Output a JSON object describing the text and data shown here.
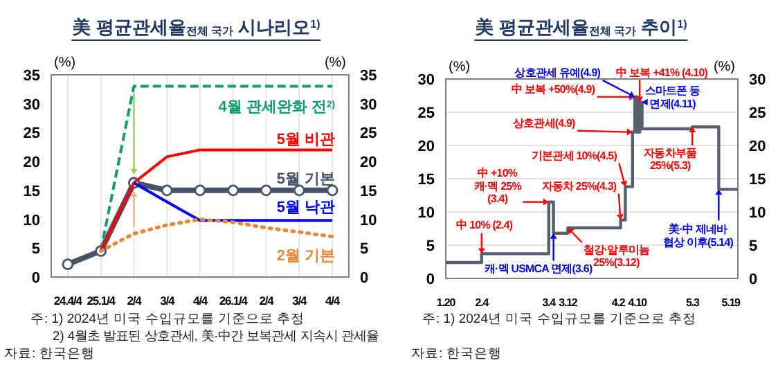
{
  "chart_data": [
    {
      "type": "line",
      "title": "美 평균관세율$_{전체 국가}$ 시나리오$^{1)}$",
      "ylabel": "(%)",
      "y2label": "(%)",
      "categories": [
        "24.4/4",
        "25.1/4",
        "2/4",
        "3/4",
        "4/4",
        "26.1/4",
        "2/4",
        "3/4",
        "4/4"
      ],
      "series": [
        {
          "name": "4월 관세완화 전$^{2)}$",
          "color": "#139b72",
          "line_style": "dashed",
          "marker": "none",
          "values": [
            null,
            4.5,
            33,
            33,
            33,
            33,
            33,
            33,
            33
          ]
        },
        {
          "name": "5월 비관",
          "color": "#ff0000",
          "line_style": "solid",
          "marker": "none",
          "values": [
            null,
            4.5,
            16.3,
            20.8,
            22,
            22,
            22,
            22,
            22
          ]
        },
        {
          "name": "5월 기본",
          "color": "#44546a",
          "line_style": "solid",
          "marker": "circle",
          "values": [
            2.2,
            4.5,
            16.3,
            15,
            15,
            15,
            15,
            15,
            15
          ]
        },
        {
          "name": "5월 낙관",
          "color": "#0000ff",
          "line_style": "solid",
          "marker": "none",
          "values": [
            null,
            null,
            16.3,
            13,
            9.8,
            9.8,
            9.8,
            9.8,
            9.8
          ]
        },
        {
          "name": "2월 기본",
          "color": "#e8883a",
          "line_style": "dotted",
          "marker": "none",
          "values": [
            null,
            4.5,
            7.5,
            9,
            10,
            9.5,
            8.5,
            7.8,
            7
          ]
        }
      ],
      "ylim": [
        0,
        35
      ],
      "yticks": [
        0,
        5,
        10,
        15,
        20,
        25,
        30,
        35
      ],
      "y2lim": [
        0,
        35
      ],
      "y2ticks": [
        0,
        5,
        10,
        15,
        20,
        25,
        30,
        35
      ],
      "grid": "x",
      "annotations": [
        "주: 1) 2024년 미국 수입규모를 기준으로 추정",
        "2) 4월초 발표된 상호관세, 美·中간 보복관세 지속시 관세율",
        "자료: 한국은행"
      ]
    },
    {
      "type": "step",
      "title": "美 평균관세율$_{전체 국가}$ 추이$^{1)}$",
      "ylabel": "(%)",
      "y2label": "(%)",
      "x": [
        "--01-20",
        "--02-04",
        "--03-04",
        "--03-06",
        "--03-12",
        "--04-03",
        "--04-05",
        "--04-08",
        "--04-09",
        "--04-10",
        "--04-11",
        "--04-12",
        "--05-03",
        "--05-14",
        "--05-22"
      ],
      "series": [
        {
          "color": "#56606f",
          "values": [
            2.4,
            3.7,
            11.5,
            6.8,
            7.6,
            8.8,
            13.8,
            22,
            27.3,
            22,
            26.5,
            22.5,
            22.8,
            13.4,
            13.4
          ]
        }
      ],
      "xlim": [
        "--01-20",
        "--05-22"
      ],
      "xticks": [
        {
          "value": "--01-20",
          "label": "1.20"
        },
        {
          "value": "--02-04",
          "label": "2.4"
        },
        {
          "value": "--03-04",
          "label": "3.4"
        },
        {
          "value": "--03-12",
          "label": "3.12"
        },
        {
          "value": "--04-02",
          "label": "4.2"
        },
        {
          "value": "--04-10",
          "label": "4.10"
        },
        {
          "value": "--05-03",
          "label": "5.3"
        },
        {
          "value": "--05-19",
          "label": "5.19"
        }
      ],
      "ylim": [
        0,
        30
      ],
      "yticks": [
        0,
        5,
        10,
        15,
        20,
        25,
        30
      ],
      "y2lim": [
        0,
        30
      ],
      "y2ticks": [
        0,
        5,
        10,
        15,
        20,
        25,
        30
      ],
      "grid": "y",
      "annotations": [
        {
          "text": "中 10% (2.4)",
          "x": "--02-04",
          "y": 3.7
        },
        {
          "text": "中 +10%\n캐·멕 25%\n(3.4)",
          "x": "--03-04",
          "y": 11.5
        },
        {
          "text": "캐·멕 USMCA 면제(3.6)",
          "x": "--03-06",
          "y": 6.8
        },
        {
          "text": "철강·알루미늄\n25%(3.12)",
          "x": "--03-12",
          "y": 7.6
        },
        {
          "text": "자동차 25%(4.3)",
          "x": "--04-03",
          "y": 8.8
        },
        {
          "text": "기본관세 10%(4.5)",
          "x": "--04-05",
          "y": 13.8
        },
        {
          "text": "상호관세(4.9)",
          "x": "--04-08",
          "y": 22
        },
        {
          "text": "中 보복 +50%(4.9)",
          "x": "--04-09",
          "y": 27.3
        },
        {
          "text": "상호관세 유예(4.9)",
          "x": "--04-09",
          "y": 27.3
        },
        {
          "text": "中 보복 +41% (4.10)",
          "x": "--04-11",
          "y": 26.5
        },
        {
          "text": "스마트폰 등\n면제(4.11)",
          "x": "--04-12",
          "y": 26.5
        },
        {
          "text": "자동차부품\n25%(5.3)",
          "x": "--05-03",
          "y": 22.8
        },
        {
          "text": "美·中 제네바\n협상 이후(5.14)",
          "x": "--05-14",
          "y": 13.4
        },
        "주: 1) 2024년 미국 수입규모를 기준으로 추정",
        "자료: 한국은행"
      ]
    }
  ]
}
